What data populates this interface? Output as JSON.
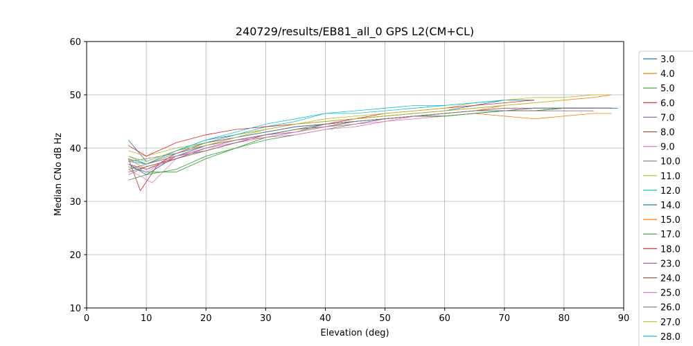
{
  "chart_data": {
    "type": "line",
    "title": "240729/results/EB81_all_0 GPS L2(CM+CL)",
    "xlabel": "Elevation (deg)",
    "ylabel": "Median CNo dB Hz",
    "xlim": [
      0,
      90
    ],
    "ylim": [
      10,
      60
    ],
    "xticks": [
      "0",
      "10",
      "20",
      "30",
      "40",
      "50",
      "60",
      "70",
      "80",
      "90"
    ],
    "yticks": [
      "10",
      "20",
      "30",
      "40",
      "50",
      "60"
    ],
    "grid": true,
    "legend_position": "right",
    "series": [
      {
        "name": "3.0",
        "color": "#1f77b4",
        "x": [
          7,
          10,
          15,
          20,
          25,
          30,
          35,
          40,
          45,
          50,
          55,
          60,
          65,
          70,
          75
        ],
        "y": [
          41.5,
          37.5,
          39.5,
          41.5,
          42.5,
          43.5,
          44.5,
          45.0,
          45.5,
          46.0,
          46.5,
          47.0,
          48.0,
          49.0,
          49.0
        ]
      },
      {
        "name": "4.0",
        "color": "#ff7f0e",
        "x": [
          7,
          10,
          15,
          20,
          25,
          30,
          35,
          40,
          45,
          50,
          55,
          60,
          65,
          70,
          75,
          80,
          85,
          88
        ],
        "y": [
          37.0,
          36.0,
          38.5,
          40.0,
          41.5,
          42.5,
          43.5,
          44.5,
          45.0,
          45.5,
          46.0,
          46.5,
          47.0,
          48.0,
          48.5,
          49.0,
          49.5,
          50.0
        ]
      },
      {
        "name": "5.0",
        "color": "#2ca02c",
        "x": [
          7,
          10,
          15,
          20,
          25,
          30,
          35,
          40,
          45,
          50,
          55,
          60,
          65,
          70,
          75,
          80,
          85,
          88
        ],
        "y": [
          34.0,
          35.0,
          36.0,
          38.5,
          40.0,
          41.5,
          42.5,
          43.5,
          44.5,
          45.5,
          46.0,
          46.0,
          46.5,
          47.0,
          47.0,
          47.5,
          47.5,
          47.5
        ]
      },
      {
        "name": "6.0",
        "color": "#d62728",
        "x": [
          7,
          9,
          12,
          15,
          20,
          25,
          30,
          35,
          40,
          45,
          50,
          55,
          60,
          65,
          70,
          75
        ],
        "y": [
          38.0,
          32.0,
          37.0,
          39.0,
          41.0,
          42.0,
          43.0,
          44.0,
          44.5,
          45.5,
          46.5,
          47.0,
          47.5,
          48.0,
          48.5,
          49.0
        ]
      },
      {
        "name": "7.0",
        "color": "#9467bd",
        "x": [
          7,
          10,
          15,
          20,
          25,
          30,
          35,
          40,
          45,
          50,
          55,
          60,
          65,
          70,
          75,
          80,
          85,
          88
        ],
        "y": [
          35.0,
          36.5,
          38.0,
          40.0,
          41.5,
          42.0,
          43.0,
          44.0,
          45.0,
          45.5,
          46.0,
          46.5,
          47.0,
          47.0,
          47.5,
          47.5,
          47.5,
          47.5
        ]
      },
      {
        "name": "8.0",
        "color": "#8c564b",
        "x": [
          7,
          10,
          15,
          20,
          25,
          30,
          35,
          40,
          45,
          50,
          55,
          60,
          65,
          70,
          75,
          80,
          85
        ],
        "y": [
          36.0,
          37.0,
          38.5,
          39.5,
          41.0,
          42.5,
          43.5,
          44.0,
          45.0,
          45.5,
          46.0,
          46.5,
          47.0,
          47.5,
          47.5,
          47.5,
          47.5
        ]
      },
      {
        "name": "9.0",
        "color": "#e377c2",
        "x": [
          7,
          11,
          15,
          20,
          25,
          30,
          35,
          40,
          45,
          50,
          55,
          60
        ],
        "y": [
          36.0,
          33.5,
          38.0,
          40.0,
          41.0,
          42.0,
          42.5,
          43.5,
          44.0,
          45.0,
          45.5,
          46.0
        ]
      },
      {
        "name": "10.0",
        "color": "#7f7f7f",
        "x": [
          7,
          10,
          15,
          20,
          25,
          30,
          35,
          40,
          45,
          50,
          55,
          60,
          65,
          70,
          75,
          80,
          85
        ],
        "y": [
          37.5,
          38.0,
          39.0,
          40.5,
          41.5,
          42.5,
          43.5,
          44.5,
          45.0,
          45.5,
          46.0,
          46.5,
          47.0,
          47.0,
          47.5,
          47.5,
          47.5
        ]
      },
      {
        "name": "11.0",
        "color": "#bcbd22",
        "x": [
          7,
          10,
          15,
          20,
          25,
          30,
          35,
          40,
          45,
          50,
          55,
          60,
          65,
          70,
          75,
          80,
          85,
          88
        ],
        "y": [
          39.5,
          38.5,
          40.0,
          41.0,
          42.5,
          43.5,
          44.5,
          45.5,
          46.0,
          46.5,
          47.0,
          47.5,
          48.5,
          49.0,
          49.5,
          49.5,
          50.0,
          50.0
        ]
      },
      {
        "name": "12.0",
        "color": "#17becf",
        "x": [
          7,
          10,
          15,
          20,
          25,
          30,
          35,
          40,
          45,
          50,
          55,
          60,
          65,
          70
        ],
        "y": [
          38.5,
          37.0,
          39.5,
          41.0,
          42.5,
          44.0,
          45.0,
          46.5,
          46.5,
          47.0,
          47.5,
          48.0,
          48.5,
          49.0
        ]
      },
      {
        "name": "14.0",
        "color": "#1f77b4",
        "x": [
          7,
          10,
          15,
          20,
          25,
          30,
          35,
          40,
          45,
          50,
          55,
          60,
          65,
          70,
          75,
          80,
          85,
          89
        ],
        "y": [
          37.0,
          35.0,
          38.5,
          40.5,
          42.0,
          43.0,
          44.0,
          44.5,
          45.0,
          45.5,
          46.0,
          46.0,
          46.5,
          47.0,
          47.0,
          47.5,
          47.5,
          47.5
        ]
      },
      {
        "name": "15.0",
        "color": "#ff7f0e",
        "x": [
          7,
          10,
          15,
          20,
          25,
          30,
          35,
          40,
          45,
          50,
          55,
          60,
          65,
          70,
          75,
          80,
          85,
          88
        ],
        "y": [
          38.0,
          36.0,
          38.0,
          40.0,
          41.5,
          42.5,
          43.5,
          44.5,
          45.0,
          45.5,
          46.0,
          46.0,
          46.5,
          46.0,
          45.5,
          46.0,
          46.5,
          46.5
        ]
      },
      {
        "name": "17.0",
        "color": "#2ca02c",
        "x": [
          7,
          10,
          15,
          20,
          25,
          30,
          35,
          40,
          45,
          50,
          55,
          60,
          65,
          70,
          75,
          80,
          85,
          88
        ],
        "y": [
          36.5,
          35.5,
          35.5,
          38.0,
          40.0,
          42.0,
          43.0,
          44.5,
          45.0,
          45.5,
          46.0,
          46.0,
          46.5,
          47.0,
          47.0,
          47.5,
          47.5,
          47.5
        ]
      },
      {
        "name": "18.0",
        "color": "#d62728",
        "x": [
          7,
          10,
          15,
          20,
          25,
          30,
          35,
          40,
          45,
          50,
          55,
          60,
          65,
          70
        ],
        "y": [
          40.5,
          38.5,
          41.0,
          42.5,
          43.5,
          44.0,
          44.5,
          45.0,
          45.5,
          46.0,
          46.5,
          47.0,
          47.5,
          48.0
        ]
      },
      {
        "name": "23.0",
        "color": "#9467bd",
        "x": [
          7,
          10,
          15,
          20,
          25,
          30,
          35,
          40,
          45,
          50,
          55,
          60,
          65,
          70,
          75,
          80,
          85,
          88
        ],
        "y": [
          37.0,
          36.0,
          38.0,
          40.0,
          41.5,
          42.5,
          43.0,
          44.0,
          44.5,
          45.5,
          46.0,
          46.5,
          47.0,
          47.0,
          47.5,
          47.5,
          47.5,
          47.5
        ]
      },
      {
        "name": "24.0",
        "color": "#8c564b",
        "x": [
          7,
          10,
          15,
          20,
          25,
          30,
          35,
          40,
          45,
          50,
          55,
          60,
          65,
          70,
          75,
          80,
          85
        ],
        "y": [
          35.5,
          36.5,
          38.0,
          39.5,
          41.0,
          42.5,
          43.5,
          44.5,
          45.0,
          45.5,
          46.0,
          46.5,
          47.0,
          47.0,
          47.0,
          47.0,
          47.0
        ]
      },
      {
        "name": "25.0",
        "color": "#e377c2",
        "x": [
          7,
          10,
          15,
          20,
          25,
          30,
          35,
          40,
          45,
          50,
          55,
          60
        ],
        "y": [
          37.0,
          35.5,
          38.5,
          40.0,
          41.5,
          42.0,
          43.0,
          44.0,
          44.5,
          45.0,
          46.0,
          46.5
        ]
      },
      {
        "name": "26.0",
        "color": "#7f7f7f",
        "x": [
          7,
          10,
          15,
          20,
          25,
          30,
          35,
          40,
          45,
          50,
          55,
          60,
          65,
          70,
          75,
          80
        ],
        "y": [
          38.0,
          37.0,
          39.0,
          40.5,
          41.5,
          42.5,
          43.5,
          44.5,
          45.0,
          45.5,
          46.0,
          46.5,
          47.0,
          47.0,
          47.5,
          47.5
        ]
      },
      {
        "name": "27.0",
        "color": "#bcbd22",
        "x": [
          7,
          10,
          15,
          20,
          25,
          30,
          35,
          40,
          45,
          50,
          55,
          60,
          65,
          70,
          75,
          80
        ],
        "y": [
          38.5,
          37.5,
          39.5,
          40.5,
          42.0,
          43.5,
          44.5,
          45.0,
          45.5,
          46.0,
          46.5,
          47.0,
          47.5,
          48.0,
          48.5,
          49.0
        ]
      },
      {
        "name": "28.0",
        "color": "#17becf",
        "x": [
          7,
          10,
          15,
          20,
          25,
          30,
          35,
          40,
          45,
          50,
          55,
          60,
          65,
          70
        ],
        "y": [
          37.5,
          37.0,
          39.5,
          41.5,
          43.0,
          44.5,
          45.5,
          46.5,
          47.0,
          47.5,
          48.0,
          48.0,
          48.5,
          49.0
        ]
      }
    ]
  }
}
